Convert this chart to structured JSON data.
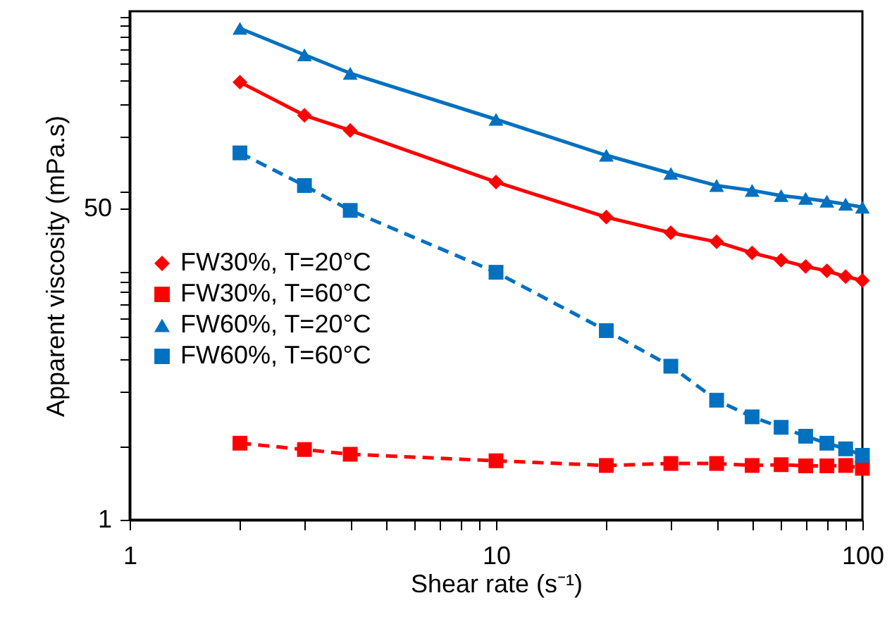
{
  "chart_data": {
    "type": "line",
    "xlabel": "Shear rate (s⁻¹)",
    "ylabel": "Apparent viscosity (mPa.s)",
    "log": "xy",
    "grid": false,
    "legend": "left",
    "x": [
      2,
      3,
      4,
      10,
      20,
      30,
      40,
      50,
      60,
      70,
      80,
      90,
      100
    ],
    "xlim": [
      1,
      100
    ],
    "xticks": [
      1,
      {
        "value": 2,
        "label": null
      },
      {
        "value": 3,
        "label": null
      },
      {
        "value": 4,
        "label": null
      },
      {
        "value": 5,
        "label": null
      },
      {
        "value": 6,
        "label": null
      },
      {
        "value": 7,
        "label": null
      },
      {
        "value": 8,
        "label": null
      },
      {
        "value": 9,
        "label": null
      },
      10,
      {
        "value": 20,
        "label": null
      },
      {
        "value": 30,
        "label": null
      },
      {
        "value": 40,
        "label": null
      },
      {
        "value": 50,
        "label": null
      },
      {
        "value": 60,
        "label": null
      },
      {
        "value": 70,
        "label": null
      },
      {
        "value": 80,
        "label": null
      },
      {
        "value": 90,
        "label": null
      },
      100
    ],
    "ylim": [
      1,
      600
    ],
    "yticks": [
      1,
      {
        "value": 2.5,
        "label": null
      },
      {
        "value": 5,
        "label": null
      },
      {
        "value": 7.5,
        "label": null
      },
      {
        "value": 10,
        "label": null
      },
      {
        "value": 12.5,
        "label": null
      },
      {
        "value": 15,
        "label": null
      },
      {
        "value": 17.5,
        "label": null
      },
      {
        "value": 20,
        "label": null
      },
      {
        "value": 22.5,
        "label": null
      },
      50,
      {
        "value": 62.5,
        "label": null
      },
      {
        "value": 125,
        "label": null
      },
      {
        "value": 187.5,
        "label": null
      },
      {
        "value": 250,
        "label": null
      },
      {
        "value": 312.5,
        "label": null
      },
      {
        "value": 375,
        "label": null
      },
      {
        "value": 437.5,
        "label": null
      },
      {
        "value": 500,
        "label": null
      },
      {
        "value": 562.5,
        "label": null
      }
    ],
    "series": [
      {
        "name": "FW30%, T=20°C",
        "color": "#ff0000",
        "marker": "diamond",
        "line_style": "solid",
        "values": [
          246,
          162,
          134,
          70,
          45,
          37,
          33,
          28.7,
          26.2,
          24.2,
          22.9,
          21.3,
          20.3
        ]
      },
      {
        "name": "FW30%, T=60°C",
        "color": "#ff0000",
        "marker": "square",
        "line_style": "dashed",
        "values": [
          2.62,
          2.42,
          2.28,
          2.1,
          1.98,
          2.03,
          2.03,
          1.98,
          2.0,
          1.97,
          1.97,
          1.98,
          1.91
        ]
      },
      {
        "name": "FW60%, T=20°C",
        "color": "#0070c0",
        "marker": "triangle",
        "line_style": "solid",
        "values": [
          484,
          347,
          275,
          154,
          98,
          78,
          67,
          63,
          59,
          57,
          55,
          53,
          51
        ]
      },
      {
        "name": "FW60%, T=60°C",
        "color": "#0070c0",
        "marker": "square",
        "line_style": "dashed",
        "values": [
          101,
          67,
          49,
          22.5,
          10.8,
          6.9,
          4.5,
          3.65,
          3.2,
          2.86,
          2.62,
          2.44,
          2.25
        ]
      }
    ]
  }
}
